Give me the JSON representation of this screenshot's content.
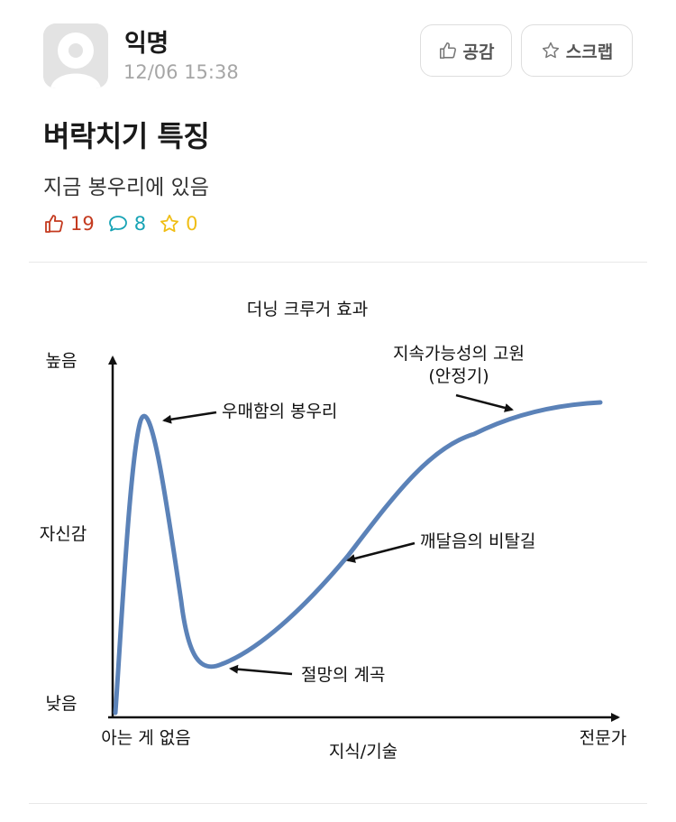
{
  "post": {
    "author": "익명",
    "timestamp": "12/06 15:38",
    "title": "벼락치기 특징",
    "body": "지금 봉우리에 있음"
  },
  "actions": {
    "like_label": "공감",
    "scrap_label": "스크랩"
  },
  "stats": {
    "likes": "19",
    "comments": "8",
    "scraps": "0"
  },
  "colors": {
    "like": "#c43a1f",
    "comment": "#17a3b5",
    "scrap": "#f0be16",
    "curve": "#5b82b8"
  },
  "figure": {
    "title": "더닝 크루거 효과",
    "y_axis_label": "자신감",
    "y_high": "높음",
    "y_low": "낮음",
    "x_axis_label": "지식/기술",
    "x_low": "아는 게 없음",
    "x_high": "전문가",
    "annotations": {
      "peak": "우매함의 봉우리",
      "valley": "절망의 계곡",
      "slope": "깨달음의 비탈길",
      "plateau_line1": "지속가능성의 고원",
      "plateau_line2": "(안정기)"
    }
  }
}
